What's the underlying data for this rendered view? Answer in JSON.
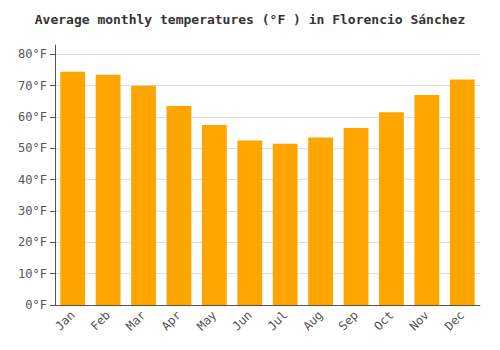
{
  "chart_data": {
    "type": "bar",
    "title": "Average monthly temperatures (°F ) in Florencio Sánchez",
    "categories": [
      "Jan",
      "Feb",
      "Mar",
      "Apr",
      "May",
      "Jun",
      "Jul",
      "Aug",
      "Sep",
      "Oct",
      "Nov",
      "Dec"
    ],
    "values": [
      74.5,
      73.5,
      70.0,
      63.5,
      57.5,
      52.5,
      51.5,
      53.5,
      56.5,
      61.5,
      67.0,
      72.0
    ],
    "color": "#FFA500",
    "ylim": [
      0,
      83
    ],
    "yticks": [
      {
        "value": 0,
        "label": "0°F"
      },
      {
        "value": 10,
        "label": "10°F"
      },
      {
        "value": 20,
        "label": "20°F"
      },
      {
        "value": 30,
        "label": "30°F"
      },
      {
        "value": 40,
        "label": "40°F"
      },
      {
        "value": 50,
        "label": "50°F"
      },
      {
        "value": 60,
        "label": "60°F"
      },
      {
        "value": 70,
        "label": "70°F"
      },
      {
        "value": 80,
        "label": "80°F"
      }
    ],
    "grid": true
  }
}
